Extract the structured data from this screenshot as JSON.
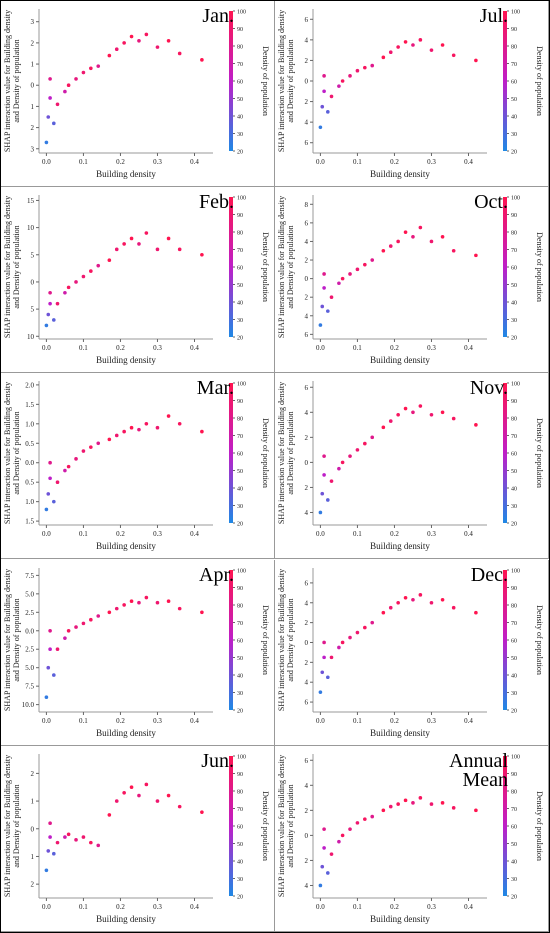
{
  "chart_data": [
    {
      "type": "scatter",
      "title": "Jan.",
      "xlabel": "Building density",
      "ylabel": [
        "SHAP interaction value for Building density",
        "and Density of population"
      ],
      "colorbar_label": "Density of population",
      "xlim": [
        -0.02,
        0.45
      ],
      "xticks": [
        {
          "value": 0,
          "label": "0.0"
        },
        0.1,
        0.2,
        0.3,
        0.4
      ],
      "clim": [
        20,
        100
      ],
      "cticks": [
        20,
        30,
        40,
        50,
        60,
        70,
        80,
        90,
        100
      ],
      "ylim": [
        -3.2,
        3.6
      ],
      "yticks": [
        {
          "value": -3,
          "label": "3"
        },
        {
          "value": -2,
          "label": "2"
        },
        {
          "value": -1,
          "label": "1"
        },
        0,
        1,
        2,
        3
      ],
      "x": [
        0,
        0.005,
        0.01,
        0.01,
        0.02,
        0.03,
        0.05,
        0.06,
        0.08,
        0.1,
        0.12,
        0.14,
        0.17,
        0.19,
        0.21,
        0.23,
        0.25,
        0.27,
        0.3,
        0.33,
        0.36,
        0.42
      ],
      "c": [
        25,
        40,
        60,
        80,
        35,
        90,
        70,
        95,
        85,
        90,
        95,
        80,
        100,
        90,
        95,
        100,
        85,
        95,
        90,
        100,
        95,
        100
      ],
      "y": [
        -2.7,
        -1.5,
        -0.6,
        0.3,
        -1.8,
        -0.9,
        -0.3,
        0,
        0.3,
        0.6,
        0.8,
        0.9,
        1.4,
        1.7,
        2,
        2.3,
        2.1,
        2.4,
        1.8,
        2.1,
        1.5,
        1.2
      ]
    },
    {
      "type": "scatter",
      "title": "Jul.",
      "xlabel": "Building density",
      "ylabel": [
        "SHAP interaction value for Building density",
        "and Density of population"
      ],
      "colorbar_label": "Density of population",
      "xlim": [
        -0.02,
        0.45
      ],
      "xticks": [
        {
          "value": 0,
          "label": "0.0"
        },
        0.1,
        0.2,
        0.3,
        0.4
      ],
      "clim": [
        20,
        100
      ],
      "cticks": [
        20,
        30,
        40,
        50,
        60,
        70,
        80,
        90,
        100
      ],
      "ylim": [
        -7,
        7
      ],
      "yticks": [
        {
          "value": -6,
          "label": "6"
        },
        {
          "value": -4,
          "label": "4"
        },
        {
          "value": -2,
          "label": "2"
        },
        0,
        2,
        4,
        6
      ],
      "x": [
        0,
        0.005,
        0.01,
        0.01,
        0.02,
        0.03,
        0.05,
        0.06,
        0.08,
        0.1,
        0.12,
        0.14,
        0.17,
        0.19,
        0.21,
        0.23,
        0.25,
        0.27,
        0.3,
        0.33,
        0.36,
        0.42
      ],
      "c": [
        25,
        40,
        60,
        80,
        35,
        90,
        70,
        95,
        85,
        90,
        95,
        80,
        100,
        90,
        95,
        100,
        85,
        95,
        90,
        100,
        95,
        100
      ],
      "y": [
        -4.5,
        -2.5,
        -1,
        0.5,
        -3,
        -1.5,
        -0.5,
        0,
        0.5,
        1,
        1.3,
        1.5,
        2.3,
        2.8,
        3.3,
        3.8,
        3.5,
        4,
        3,
        3.5,
        2.5,
        2
      ]
    },
    {
      "type": "scatter",
      "title": "Feb.",
      "xlabel": "Building density",
      "ylabel": [
        "SHAP interaction value for Building density",
        "and Density of population"
      ],
      "colorbar_label": "Density of population",
      "xlim": [
        -0.02,
        0.45
      ],
      "xticks": [
        {
          "value": 0,
          "label": "0.0"
        },
        0.1,
        0.2,
        0.3,
        0.4
      ],
      "clim": [
        20,
        100
      ],
      "cticks": [
        20,
        30,
        40,
        50,
        60,
        70,
        80,
        90,
        100
      ],
      "ylim": [
        -10.5,
        16
      ],
      "yticks": [
        {
          "value": -10,
          "label": "10"
        },
        {
          "value": -5,
          "label": "5"
        },
        0,
        5,
        10,
        15
      ],
      "x": [
        0,
        0.005,
        0.01,
        0.01,
        0.02,
        0.03,
        0.05,
        0.06,
        0.08,
        0.1,
        0.12,
        0.14,
        0.17,
        0.19,
        0.21,
        0.23,
        0.25,
        0.27,
        0.3,
        0.33,
        0.36,
        0.42
      ],
      "c": [
        25,
        40,
        60,
        80,
        35,
        90,
        70,
        95,
        85,
        90,
        95,
        80,
        100,
        90,
        95,
        100,
        85,
        95,
        90,
        100,
        95,
        100
      ],
      "y": [
        -8,
        -6,
        -4,
        -2,
        -7,
        -4,
        -2,
        -1,
        0,
        1,
        2,
        3,
        4,
        6,
        7,
        8,
        7,
        9,
        6,
        8,
        6,
        5
      ]
    },
    {
      "type": "scatter",
      "title": "Oct.",
      "xlabel": "Building density",
      "ylabel": [
        "SHAP interaction value for Building density",
        "and Density of population"
      ],
      "colorbar_label": "Density of population",
      "xlim": [
        -0.02,
        0.45
      ],
      "xticks": [
        {
          "value": 0,
          "label": "0.0"
        },
        0.1,
        0.2,
        0.3,
        0.4
      ],
      "clim": [
        20,
        100
      ],
      "cticks": [
        20,
        30,
        40,
        50,
        60,
        70,
        80,
        90,
        100
      ],
      "ylim": [
        -6.5,
        9
      ],
      "yticks": [
        {
          "value": -6,
          "label": "6"
        },
        {
          "value": -4,
          "label": "4"
        },
        {
          "value": -2,
          "label": "2"
        },
        0,
        2,
        4,
        6,
        8
      ],
      "x": [
        0,
        0.005,
        0.01,
        0.01,
        0.02,
        0.03,
        0.05,
        0.06,
        0.08,
        0.1,
        0.12,
        0.14,
        0.17,
        0.19,
        0.21,
        0.23,
        0.25,
        0.27,
        0.3,
        0.33,
        0.36,
        0.42
      ],
      "c": [
        25,
        40,
        60,
        80,
        35,
        90,
        70,
        95,
        85,
        90,
        95,
        80,
        100,
        90,
        95,
        100,
        85,
        95,
        90,
        100,
        95,
        100
      ],
      "y": [
        -5,
        -3,
        -1,
        0.5,
        -3.5,
        -2,
        -0.5,
        0,
        0.5,
        1,
        1.5,
        2,
        3,
        3.5,
        4,
        5,
        4.5,
        5.5,
        4,
        4.5,
        3,
        2.5
      ]
    },
    {
      "type": "scatter",
      "title": "Mar.",
      "xlabel": "Building density",
      "ylabel": [
        "SHAP interaction value for Building density",
        "and Density of population"
      ],
      "colorbar_label": "Density of population",
      "xlim": [
        -0.02,
        0.45
      ],
      "xticks": [
        {
          "value": 0,
          "label": "0.0"
        },
        0.1,
        0.2,
        0.3,
        0.4
      ],
      "clim": [
        20,
        100
      ],
      "cticks": [
        20,
        30,
        40,
        50,
        60,
        70,
        80,
        90,
        100
      ],
      "ylim": [
        -1.6,
        2.1
      ],
      "yticks": [
        {
          "value": -1.5,
          "label": "1.5"
        },
        {
          "value": -1,
          "label": "1.0"
        },
        {
          "value": -0.5,
          "label": "0.5"
        },
        {
          "value": 0,
          "label": "0.0"
        },
        0.5,
        {
          "value": 1,
          "label": "1.0"
        },
        1.5,
        {
          "value": 2,
          "label": "2.0"
        }
      ],
      "x": [
        0,
        0.005,
        0.01,
        0.01,
        0.02,
        0.03,
        0.05,
        0.06,
        0.08,
        0.1,
        0.12,
        0.14,
        0.17,
        0.19,
        0.21,
        0.23,
        0.25,
        0.27,
        0.3,
        0.33,
        0.36,
        0.42
      ],
      "c": [
        25,
        40,
        60,
        80,
        35,
        90,
        70,
        95,
        85,
        90,
        95,
        80,
        100,
        90,
        95,
        100,
        85,
        95,
        90,
        100,
        95,
        100
      ],
      "y": [
        -1.2,
        -0.8,
        -0.4,
        0,
        -1,
        -0.5,
        -0.2,
        -0.1,
        0.1,
        0.3,
        0.4,
        0.5,
        0.6,
        0.7,
        0.8,
        0.9,
        0.85,
        1,
        0.9,
        1.2,
        1,
        0.8
      ]
    },
    {
      "type": "scatter",
      "title": "Nov.",
      "xlabel": "Building density",
      "ylabel": [
        "SHAP interaction value for Building density",
        "and Density of population"
      ],
      "colorbar_label": "Density of population",
      "xlim": [
        -0.02,
        0.45
      ],
      "xticks": [
        {
          "value": 0,
          "label": "0.0"
        },
        0.1,
        0.2,
        0.3,
        0.4
      ],
      "clim": [
        20,
        100
      ],
      "cticks": [
        20,
        30,
        40,
        50,
        60,
        70,
        80,
        90,
        100
      ],
      "ylim": [
        -5,
        6.5
      ],
      "yticks": [
        {
          "value": -4,
          "label": "4"
        },
        {
          "value": -2,
          "label": "2"
        },
        0,
        2,
        4,
        6
      ],
      "x": [
        0,
        0.005,
        0.01,
        0.01,
        0.02,
        0.03,
        0.05,
        0.06,
        0.08,
        0.1,
        0.12,
        0.14,
        0.17,
        0.19,
        0.21,
        0.23,
        0.25,
        0.27,
        0.3,
        0.33,
        0.36,
        0.42
      ],
      "c": [
        25,
        40,
        60,
        80,
        35,
        90,
        70,
        95,
        85,
        90,
        95,
        80,
        100,
        90,
        95,
        100,
        85,
        95,
        90,
        100,
        95,
        100
      ],
      "y": [
        -4,
        -2.5,
        -1,
        0.5,
        -3,
        -1.5,
        -0.5,
        0,
        0.5,
        1,
        1.5,
        2,
        2.8,
        3.3,
        3.8,
        4.3,
        4,
        4.5,
        3.8,
        4,
        3.5,
        3
      ]
    },
    {
      "type": "scatter",
      "title": "Apr.",
      "xlabel": "Building density",
      "ylabel": [
        "SHAP interaction value for Building density",
        "and Density of population"
      ],
      "colorbar_label": "Density of population",
      "xlim": [
        -0.02,
        0.45
      ],
      "xticks": [
        {
          "value": 0,
          "label": "0.0"
        },
        0.1,
        0.2,
        0.3,
        0.4
      ],
      "clim": [
        20,
        100
      ],
      "cticks": [
        20,
        30,
        40,
        50,
        60,
        70,
        80,
        90,
        100
      ],
      "ylim": [
        -11,
        8.5
      ],
      "yticks": [
        {
          "value": -10,
          "label": "10.0"
        },
        {
          "value": -7.5,
          "label": "7.5"
        },
        {
          "value": -5,
          "label": "5.0"
        },
        {
          "value": -2.5,
          "label": "2.5"
        },
        {
          "value": 0,
          "label": "0.0"
        },
        2.5,
        {
          "value": 5,
          "label": "5.0"
        },
        7.5
      ],
      "x": [
        0,
        0.005,
        0.01,
        0.01,
        0.02,
        0.03,
        0.05,
        0.06,
        0.08,
        0.1,
        0.12,
        0.14,
        0.17,
        0.19,
        0.21,
        0.23,
        0.25,
        0.27,
        0.3,
        0.33,
        0.36,
        0.42
      ],
      "c": [
        25,
        40,
        60,
        80,
        35,
        90,
        70,
        95,
        85,
        90,
        95,
        80,
        100,
        90,
        95,
        100,
        85,
        95,
        90,
        100,
        95,
        100
      ],
      "y": [
        -9,
        -5,
        -2.5,
        0,
        -6,
        -2.5,
        -1,
        0,
        0.5,
        1,
        1.5,
        2,
        2.5,
        3,
        3.5,
        4,
        3.8,
        4.5,
        3.8,
        4,
        3,
        2.5
      ]
    },
    {
      "type": "scatter",
      "title": "Dec.",
      "xlabel": "Building density",
      "ylabel": [
        "SHAP interaction value for Building density",
        "and Density of population"
      ],
      "colorbar_label": "Density of population",
      "xlim": [
        -0.02,
        0.45
      ],
      "xticks": [
        {
          "value": 0,
          "label": "0.0"
        },
        0.1,
        0.2,
        0.3,
        0.4
      ],
      "clim": [
        20,
        100
      ],
      "cticks": [
        20,
        30,
        40,
        50,
        60,
        70,
        80,
        90,
        100
      ],
      "ylim": [
        -7,
        7.5
      ],
      "yticks": [
        {
          "value": -6,
          "label": "6"
        },
        {
          "value": -4,
          "label": "4"
        },
        {
          "value": -2,
          "label": "2"
        },
        0,
        2,
        4,
        6
      ],
      "x": [
        0,
        0.005,
        0.01,
        0.01,
        0.02,
        0.03,
        0.05,
        0.06,
        0.08,
        0.1,
        0.12,
        0.14,
        0.17,
        0.19,
        0.21,
        0.23,
        0.25,
        0.27,
        0.3,
        0.33,
        0.36,
        0.42
      ],
      "c": [
        25,
        40,
        60,
        80,
        35,
        90,
        70,
        95,
        85,
        90,
        95,
        80,
        100,
        90,
        95,
        100,
        85,
        95,
        90,
        100,
        95,
        100
      ],
      "y": [
        -5,
        -3,
        -1.5,
        0,
        -3.5,
        -1.5,
        -0.5,
        0,
        0.5,
        1,
        1.5,
        2,
        3,
        3.5,
        4,
        4.5,
        4.3,
        4.8,
        4,
        4.3,
        3.5,
        3
      ]
    },
    {
      "type": "scatter",
      "title": "Jun.",
      "xlabel": "Building density",
      "ylabel": [
        "SHAP interaction value for Building density",
        "and Density of population"
      ],
      "colorbar_label": "Density of population",
      "xlim": [
        -0.02,
        0.45
      ],
      "xticks": [
        {
          "value": 0,
          "label": "0.0"
        },
        0.1,
        0.2,
        0.3,
        0.4
      ],
      "clim": [
        20,
        100
      ],
      "cticks": [
        20,
        30,
        40,
        50,
        60,
        70,
        80,
        90,
        100
      ],
      "ylim": [
        -2.5,
        2.7
      ],
      "yticks": [
        {
          "value": -2,
          "label": "2"
        },
        {
          "value": -1,
          "label": "1"
        },
        0,
        1,
        2
      ],
      "x": [
        0,
        0.005,
        0.01,
        0.01,
        0.02,
        0.03,
        0.05,
        0.06,
        0.08,
        0.1,
        0.12,
        0.14,
        0.17,
        0.19,
        0.21,
        0.23,
        0.25,
        0.27,
        0.3,
        0.33,
        0.36,
        0.42
      ],
      "c": [
        25,
        40,
        60,
        80,
        35,
        90,
        70,
        95,
        85,
        90,
        95,
        80,
        100,
        90,
        95,
        100,
        85,
        95,
        90,
        100,
        95,
        100
      ],
      "y": [
        -1.5,
        -0.8,
        -0.3,
        0.2,
        -0.9,
        -0.5,
        -0.3,
        -0.2,
        -0.4,
        -0.3,
        -0.5,
        -0.6,
        0.5,
        1,
        1.3,
        1.5,
        1.2,
        1.6,
        1,
        1.2,
        0.8,
        0.6
      ]
    },
    {
      "type": "scatter",
      "title": "Annual Mean",
      "xlabel": "Building density",
      "ylabel": [
        "SHAP interaction value for Building density",
        "and Density of population"
      ],
      "colorbar_label": "Density of population",
      "xlim": [
        -0.02,
        0.45
      ],
      "xticks": [
        {
          "value": 0,
          "label": "0.0"
        },
        0.1,
        0.2,
        0.3,
        0.4
      ],
      "clim": [
        20,
        100
      ],
      "cticks": [
        20,
        30,
        40,
        50,
        60,
        70,
        80,
        90,
        100
      ],
      "ylim": [
        -5,
        6.5
      ],
      "yticks": [
        {
          "value": -4,
          "label": "4"
        },
        {
          "value": -2,
          "label": "2"
        },
        0,
        2,
        4,
        6
      ],
      "x": [
        0,
        0.005,
        0.01,
        0.01,
        0.02,
        0.03,
        0.05,
        0.06,
        0.08,
        0.1,
        0.12,
        0.14,
        0.17,
        0.19,
        0.21,
        0.23,
        0.25,
        0.27,
        0.3,
        0.33,
        0.36,
        0.42
      ],
      "c": [
        25,
        40,
        60,
        80,
        35,
        90,
        70,
        95,
        85,
        90,
        95,
        80,
        100,
        90,
        95,
        100,
        85,
        95,
        90,
        100,
        95,
        100
      ],
      "y": [
        -4,
        -2.5,
        -1,
        0.5,
        -3,
        -1.5,
        -0.5,
        0,
        0.5,
        1,
        1.3,
        1.5,
        2,
        2.3,
        2.5,
        2.8,
        2.6,
        3,
        2.5,
        2.6,
        2.2,
        2
      ]
    }
  ]
}
